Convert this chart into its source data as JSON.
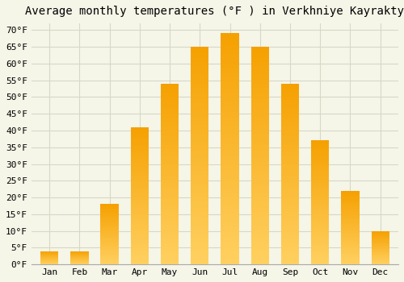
{
  "title": "Average monthly temperatures (°F ) in Verkhniye Kayrakty",
  "months": [
    "Jan",
    "Feb",
    "Mar",
    "Apr",
    "May",
    "Jun",
    "Jul",
    "Aug",
    "Sep",
    "Oct",
    "Nov",
    "Dec"
  ],
  "values": [
    4,
    4,
    18,
    41,
    54,
    65,
    69,
    65,
    54,
    37,
    22,
    10
  ],
  "bar_color_top": "#F5A000",
  "bar_color_bottom": "#FFD060",
  "ylim": [
    0,
    72
  ],
  "yticks": [
    0,
    5,
    10,
    15,
    20,
    25,
    30,
    35,
    40,
    45,
    50,
    55,
    60,
    65,
    70
  ],
  "ytick_labels": [
    "0°F",
    "5°F",
    "10°F",
    "15°F",
    "20°F",
    "25°F",
    "30°F",
    "35°F",
    "40°F",
    "45°F",
    "50°F",
    "55°F",
    "60°F",
    "65°F",
    "70°F"
  ],
  "background_color": "#f5f5e8",
  "grid_color": "#d8d8c8",
  "title_fontsize": 10,
  "tick_fontsize": 8,
  "bar_width": 0.6
}
